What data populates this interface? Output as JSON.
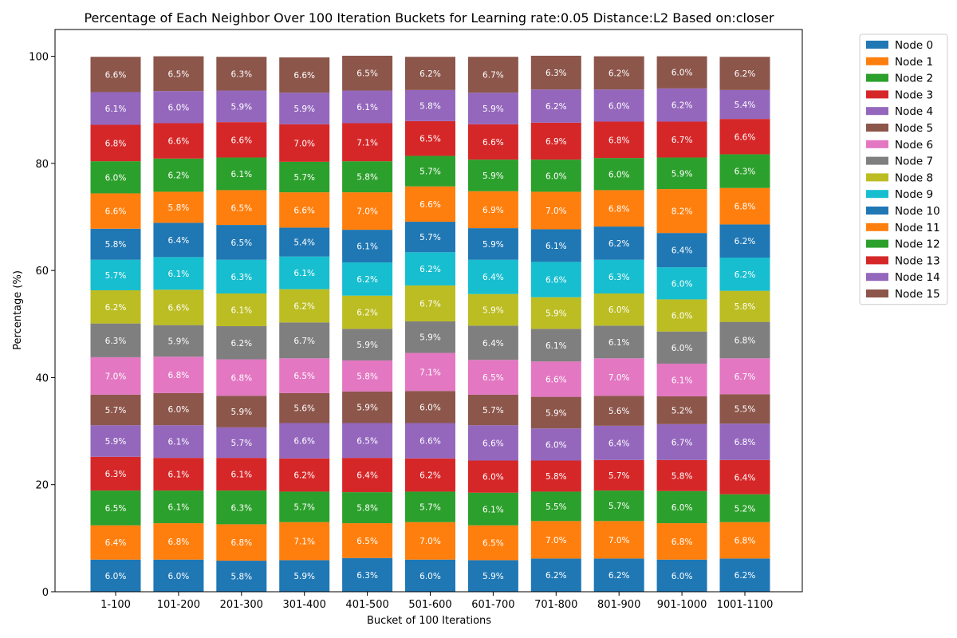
{
  "chart_data": {
    "type": "bar",
    "stacked": true,
    "title": "Percentage of Each Neighbor Over 100 Iteration Buckets for Learning rate:0.05 Distance:L2 Based on:closer",
    "xlabel": "Bucket of 100 Iterations",
    "ylabel": "Percentage (%)",
    "ylim": [
      0,
      105
    ],
    "yticks": [
      0,
      20,
      40,
      60,
      80,
      100
    ],
    "grid": false,
    "legend_position": "outside-top-right",
    "categories": [
      "1-100",
      "101-200",
      "201-300",
      "301-400",
      "401-500",
      "501-600",
      "601-700",
      "701-800",
      "801-900",
      "901-1000",
      "1001-1100"
    ],
    "series": [
      {
        "name": "Node 0",
        "color": "#1f77b4",
        "values": [
          6.0,
          6.0,
          5.8,
          5.9,
          6.3,
          6.0,
          5.9,
          6.2,
          6.2,
          6.0,
          6.2
        ]
      },
      {
        "name": "Node 1",
        "color": "#ff7f0e",
        "values": [
          6.4,
          6.8,
          6.8,
          7.1,
          6.5,
          7.0,
          6.5,
          7.0,
          7.0,
          6.8,
          6.8
        ]
      },
      {
        "name": "Node 2",
        "color": "#2ca02c",
        "values": [
          6.5,
          6.1,
          6.3,
          5.7,
          5.8,
          5.7,
          6.1,
          5.5,
          5.7,
          6.0,
          5.2
        ]
      },
      {
        "name": "Node 3",
        "color": "#d62728",
        "values": [
          6.3,
          6.1,
          6.1,
          6.2,
          6.4,
          6.2,
          6.0,
          5.8,
          5.7,
          5.8,
          6.4
        ]
      },
      {
        "name": "Node 4",
        "color": "#9467bd",
        "values": [
          5.9,
          6.1,
          5.7,
          6.6,
          6.5,
          6.6,
          6.6,
          6.0,
          6.4,
          6.7,
          6.8
        ]
      },
      {
        "name": "Node 5",
        "color": "#8c564b",
        "values": [
          5.7,
          6.0,
          5.9,
          5.6,
          5.9,
          6.0,
          5.7,
          5.9,
          5.6,
          5.2,
          5.5
        ]
      },
      {
        "name": "Node 6",
        "color": "#e377c2",
        "values": [
          7.0,
          6.8,
          6.8,
          6.5,
          5.8,
          7.1,
          6.5,
          6.6,
          7.0,
          6.1,
          6.7
        ]
      },
      {
        "name": "Node 7",
        "color": "#7f7f7f",
        "values": [
          6.3,
          5.9,
          6.2,
          6.7,
          5.9,
          5.9,
          6.4,
          6.1,
          6.1,
          6.0,
          6.8
        ]
      },
      {
        "name": "Node 8",
        "color": "#bcbd22",
        "values": [
          6.2,
          6.6,
          6.1,
          6.2,
          6.2,
          6.7,
          5.9,
          5.9,
          6.0,
          6.0,
          5.8
        ]
      },
      {
        "name": "Node 9",
        "color": "#17becf",
        "values": [
          5.7,
          6.1,
          6.3,
          6.1,
          6.2,
          6.2,
          6.4,
          6.6,
          6.3,
          6.0,
          6.2
        ]
      },
      {
        "name": "Node 10",
        "color": "#1f77b4",
        "values": [
          5.8,
          6.4,
          6.5,
          5.4,
          6.1,
          5.7,
          5.9,
          6.1,
          6.2,
          6.4,
          6.2
        ]
      },
      {
        "name": "Node 11",
        "color": "#ff7f0e",
        "values": [
          6.6,
          5.8,
          6.5,
          6.6,
          7.0,
          6.6,
          6.9,
          7.0,
          6.8,
          8.2,
          6.8
        ]
      },
      {
        "name": "Node 12",
        "color": "#2ca02c",
        "values": [
          6.0,
          6.2,
          6.1,
          5.7,
          5.8,
          5.7,
          5.9,
          6.0,
          6.0,
          5.9,
          6.3
        ]
      },
      {
        "name": "Node 13",
        "color": "#d62728",
        "values": [
          6.8,
          6.6,
          6.6,
          7.0,
          7.1,
          6.5,
          6.6,
          6.9,
          6.8,
          6.7,
          6.6
        ]
      },
      {
        "name": "Node 14",
        "color": "#9467bd",
        "values": [
          6.1,
          6.0,
          5.9,
          5.9,
          6.1,
          5.8,
          5.9,
          6.2,
          6.0,
          6.2,
          5.4
        ]
      },
      {
        "name": "Node 15",
        "color": "#8c564b",
        "values": [
          6.6,
          6.5,
          6.3,
          6.6,
          6.5,
          6.2,
          6.7,
          6.3,
          6.2,
          6.0,
          6.2
        ]
      }
    ]
  }
}
